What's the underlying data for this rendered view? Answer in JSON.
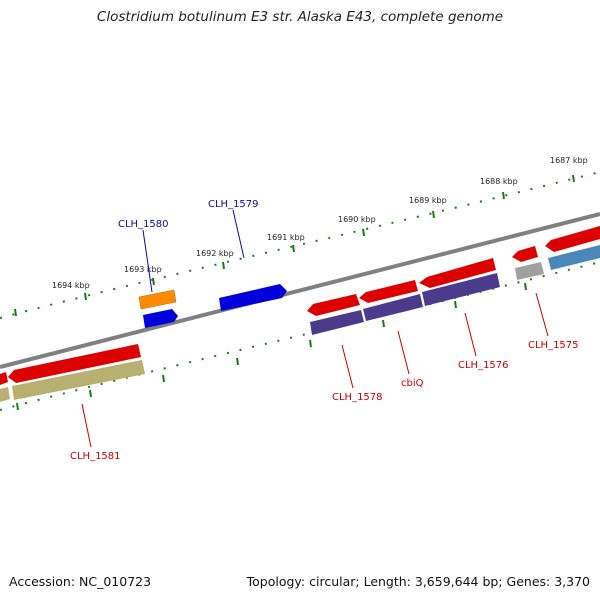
{
  "title": "Clostridium botulinum E3 str. Alaska E43, complete genome",
  "accession": "Accession: NC_010723",
  "topology": "Topology: circular; Length: 3,659,644 bp; Genes: 3,370",
  "colors": {
    "backbone": "#777777",
    "tick": "#1a7a1a",
    "forward_label": "#0a0aa0",
    "reverse_label": "#cc0000",
    "cds_red": "#dd0000",
    "cds_blue": "#0000dd",
    "cds_orange": "#ff8c00",
    "cds_purple": "#4b3b8c",
    "cds_khaki": "#b8b070",
    "cds_gray": "#a0a0a0",
    "cds_steel": "#4a86b8"
  },
  "scale_labels": {
    "k1687": "1687 kbp",
    "k1688": "1688 kbp",
    "k1689": "1689 kbp",
    "k1690": "1690 kbp",
    "k1691": "1691 kbp",
    "k1692": "1692 kbp",
    "k1693": "1693 kbp",
    "k1694": "1694 kbp"
  },
  "gene_labels": {
    "clh1580": "CLH_1580",
    "clh1579": "CLH_1579",
    "clh1581": "CLH_1581",
    "clh1578": "CLH_1578",
    "cbiq": "cbiQ",
    "clh1576": "CLH_1576",
    "clh1575": "CLH_1575"
  }
}
